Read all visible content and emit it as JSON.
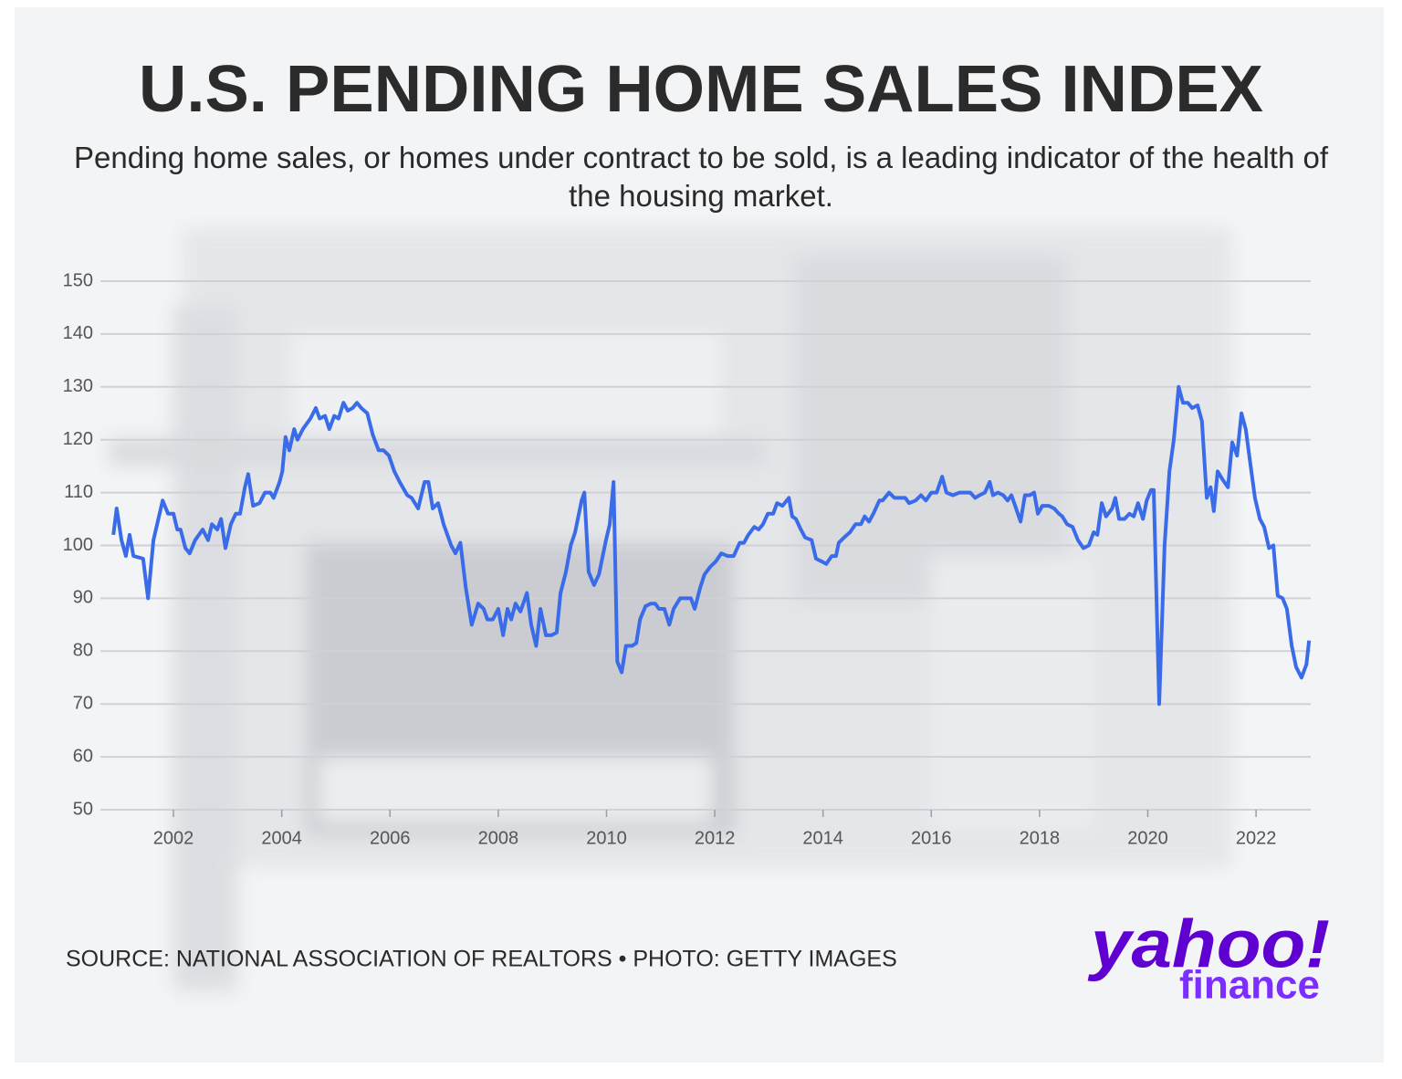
{
  "chart_data": {
    "type": "line",
    "title": "U.S. PENDING HOME SALES INDEX",
    "subtitle": "Pending home sales, or homes under contract to be sold, is a leading indicator of the health of the housing market.",
    "source": "SOURCE: NATIONAL ASSOCIATION OF REALTORS • PHOTO: GETTY IMAGES",
    "logo": {
      "brand": "yahoo!",
      "sub": "finance"
    },
    "color": "#3a6be8",
    "grid": true,
    "xlim": [
      2000.65,
      2023.01
    ],
    "xticks": [
      2002,
      2004,
      2006,
      2008,
      2010,
      2012,
      2014,
      2016,
      2018,
      2020,
      2022
    ],
    "ylim": [
      50,
      150
    ],
    "yticks": [
      50,
      60,
      70,
      80,
      90,
      100,
      110,
      120,
      130,
      140,
      150
    ],
    "x": [
      2000.89,
      2000.95,
      2001.04,
      2001.12,
      2001.19,
      2001.26,
      2001.44,
      2001.53,
      2001.63,
      2001.8,
      2001.9,
      2002.0,
      2002.07,
      2002.13,
      2002.22,
      2002.3,
      2002.4,
      2002.54,
      2002.64,
      2002.71,
      2002.81,
      2002.88,
      2002.96,
      2003.06,
      2003.15,
      2003.23,
      2003.32,
      2003.38,
      2003.47,
      2003.59,
      2003.69,
      2003.79,
      2003.85,
      2003.96,
      2004.01,
      2004.07,
      2004.14,
      2004.23,
      2004.29,
      2004.39,
      2004.53,
      2004.63,
      2004.7,
      2004.8,
      2004.88,
      2004.97,
      2005.05,
      2005.14,
      2005.22,
      2005.31,
      2005.39,
      2005.47,
      2005.58,
      2005.68,
      2005.79,
      2005.88,
      2005.98,
      2006.08,
      2006.18,
      2006.32,
      2006.4,
      2006.52,
      2006.64,
      2006.71,
      2006.79,
      2006.89,
      2006.99,
      2007.13,
      2007.21,
      2007.3,
      2007.4,
      2007.51,
      2007.63,
      2007.73,
      2007.8,
      2007.9,
      2008.0,
      2008.09,
      2008.17,
      2008.24,
      2008.32,
      2008.41,
      2008.53,
      2008.61,
      2008.7,
      2008.78,
      2008.88,
      2008.98,
      2009.08,
      2009.15,
      2009.25,
      2009.34,
      2009.42,
      2009.54,
      2009.59,
      2009.67,
      2009.77,
      2009.86,
      2009.99,
      2010.06,
      2010.13,
      2010.2,
      2010.28,
      2010.36,
      2010.47,
      2010.55,
      2010.62,
      2010.72,
      2010.82,
      2010.9,
      2010.97,
      2011.07,
      2011.16,
      2011.24,
      2011.36,
      2011.48,
      2011.56,
      2011.63,
      2011.73,
      2011.81,
      2011.92,
      2012.02,
      2012.12,
      2012.24,
      2012.35,
      2012.46,
      2012.54,
      2012.62,
      2012.73,
      2012.81,
      2012.89,
      2012.98,
      2013.08,
      2013.15,
      2013.25,
      2013.37,
      2013.43,
      2013.5,
      2013.59,
      2013.67,
      2013.79,
      2013.87,
      2013.97,
      2014.06,
      2014.16,
      2014.24,
      2014.29,
      2014.39,
      2014.5,
      2014.6,
      2014.7,
      2014.77,
      2014.85,
      2014.93,
      2015.04,
      2015.1,
      2015.22,
      2015.32,
      2015.42,
      2015.52,
      2015.59,
      2015.71,
      2015.81,
      2015.9,
      2016.0,
      2016.1,
      2016.2,
      2016.28,
      2016.4,
      2016.52,
      2016.72,
      2016.81,
      2016.89,
      2016.99,
      2017.08,
      2017.14,
      2017.23,
      2017.33,
      2017.41,
      2017.48,
      2017.55,
      2017.65,
      2017.73,
      2017.82,
      2017.9,
      2017.97,
      2018.05,
      2018.17,
      2018.27,
      2018.36,
      2018.42,
      2018.51,
      2018.61,
      2018.71,
      2018.81,
      2018.91,
      2019.0,
      2019.07,
      2019.15,
      2019.23,
      2019.34,
      2019.4,
      2019.47,
      2019.57,
      2019.66,
      2019.74,
      2019.82,
      2019.91,
      2019.98,
      2020.06,
      2020.11,
      2020.21,
      2020.31,
      2020.4,
      2020.48,
      2020.57,
      2020.65,
      2020.74,
      2020.82,
      2020.92,
      2021.0,
      2021.09,
      2021.16,
      2021.22,
      2021.29,
      2021.38,
      2021.48,
      2021.56,
      2021.65,
      2021.73,
      2021.81,
      2021.9,
      2021.98,
      2022.07,
      2022.15,
      2022.24,
      2022.32,
      2022.4,
      2022.49,
      2022.57,
      2022.66,
      2022.74,
      2022.84,
      2022.93,
      2022.98
    ],
    "values": [
      102,
      107,
      101,
      98,
      102,
      98,
      97.5,
      90,
      101,
      108.5,
      106,
      106,
      103,
      103,
      99.5,
      98.5,
      101,
      103,
      101,
      104,
      103,
      105,
      99.5,
      104,
      106,
      106,
      111,
      113.5,
      107.5,
      108,
      110,
      110,
      109,
      112,
      114,
      120.5,
      118,
      122,
      120,
      122,
      124,
      126,
      124,
      124.5,
      122,
      124.5,
      124,
      127,
      125.5,
      126,
      127,
      126,
      125,
      121,
      118,
      118,
      117,
      114,
      112,
      109.5,
      109,
      107,
      112,
      112,
      107,
      108,
      104,
      100,
      98.5,
      100.5,
      92,
      85,
      89,
      88,
      86,
      86,
      88,
      83,
      88,
      86,
      89,
      87.5,
      91,
      85,
      81,
      88,
      83,
      83,
      83.5,
      91,
      95,
      100,
      102.5,
      108.5,
      110,
      95,
      92.5,
      94.5,
      101,
      104,
      112,
      78,
      76,
      81,
      81,
      81.5,
      86,
      88.5,
      89,
      89,
      88,
      88,
      85,
      88,
      90,
      90,
      90,
      88,
      92,
      94.5,
      96,
      97,
      98.5,
      98,
      98,
      100.5,
      100.5,
      102,
      103.5,
      103,
      104,
      106,
      106,
      108,
      107.5,
      109,
      105.5,
      105,
      103,
      101.5,
      101,
      97.5,
      97,
      96.5,
      98,
      98,
      100.5,
      101.5,
      102.5,
      104,
      104,
      105.5,
      104.5,
      106,
      108.5,
      108.5,
      110,
      109,
      109,
      109,
      108,
      108.5,
      109.5,
      108.5,
      110,
      110,
      113,
      110,
      109.5,
      110,
      110,
      109,
      109.5,
      110,
      112,
      109.5,
      110,
      109.5,
      108.5,
      109.5,
      107.5,
      104.5,
      109.5,
      109.5,
      110,
      106,
      107.5,
      107.5,
      107,
      106,
      105.5,
      104,
      103.5,
      101,
      99.5,
      100,
      102.5,
      102,
      108,
      105.5,
      107,
      109,
      105,
      105,
      106,
      105.5,
      108,
      105,
      108.5,
      110.5,
      110.5,
      70,
      100,
      114,
      120,
      130,
      127,
      127,
      126,
      126.5,
      123.5,
      109,
      111,
      106.5,
      114,
      112.5,
      111,
      119.5,
      117,
      125,
      122,
      115,
      109,
      105,
      103.5,
      99.5,
      100,
      90.5,
      90,
      88,
      81,
      77,
      75,
      77.5,
      82
    ]
  }
}
